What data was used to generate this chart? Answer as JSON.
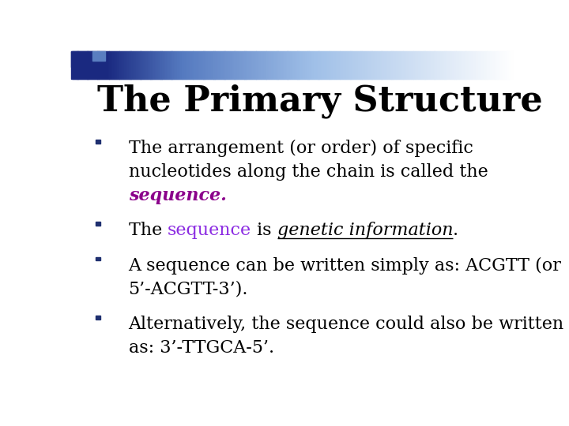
{
  "title": "The Primary Structure",
  "title_fontsize": 32,
  "background_color": "#ffffff",
  "bullet_color": "#1f3070",
  "header_bar_height": 0.085,
  "small_square_color": "#1a2980",
  "small_square2_color": "#5a7ec0",
  "bullet_font_size": 16,
  "bullets": [
    {
      "lines": [
        [
          {
            "text": "The arrangement (or order) of specific",
            "color": "#000000",
            "bold": false,
            "italic": false,
            "underline": false
          }
        ],
        [
          {
            "text": "nucleotides along the chain is called the",
            "color": "#000000",
            "bold": false,
            "italic": false,
            "underline": false
          }
        ],
        [
          {
            "text": "sequence.",
            "color": "#8B008B",
            "bold": true,
            "italic": true,
            "underline": false
          }
        ]
      ]
    },
    {
      "lines": [
        [
          {
            "text": "The ",
            "color": "#000000",
            "bold": false,
            "italic": false,
            "underline": false
          },
          {
            "text": "sequence",
            "color": "#8B2BE2",
            "bold": false,
            "italic": false,
            "underline": false
          },
          {
            "text": " is ",
            "color": "#000000",
            "bold": false,
            "italic": false,
            "underline": false
          },
          {
            "text": "genetic information",
            "color": "#000000",
            "bold": false,
            "italic": true,
            "underline": true
          },
          {
            "text": ".",
            "color": "#000000",
            "bold": false,
            "italic": false,
            "underline": false
          }
        ]
      ]
    },
    {
      "lines": [
        [
          {
            "text": "A sequence can be written simply as: ACGTT (or",
            "color": "#000000",
            "bold": false,
            "italic": false,
            "underline": false
          }
        ],
        [
          {
            "text": "5’-ACGTT-3’).",
            "color": "#000000",
            "bold": false,
            "italic": false,
            "underline": false
          }
        ]
      ]
    },
    {
      "lines": [
        [
          {
            "text": "Alternatively, the sequence could also be written",
            "color": "#000000",
            "bold": false,
            "italic": false,
            "underline": false
          }
        ],
        [
          {
            "text": "as: 3’-TTGCA-5’.",
            "color": "#000000",
            "bold": false,
            "italic": false,
            "underline": false
          }
        ]
      ]
    }
  ]
}
